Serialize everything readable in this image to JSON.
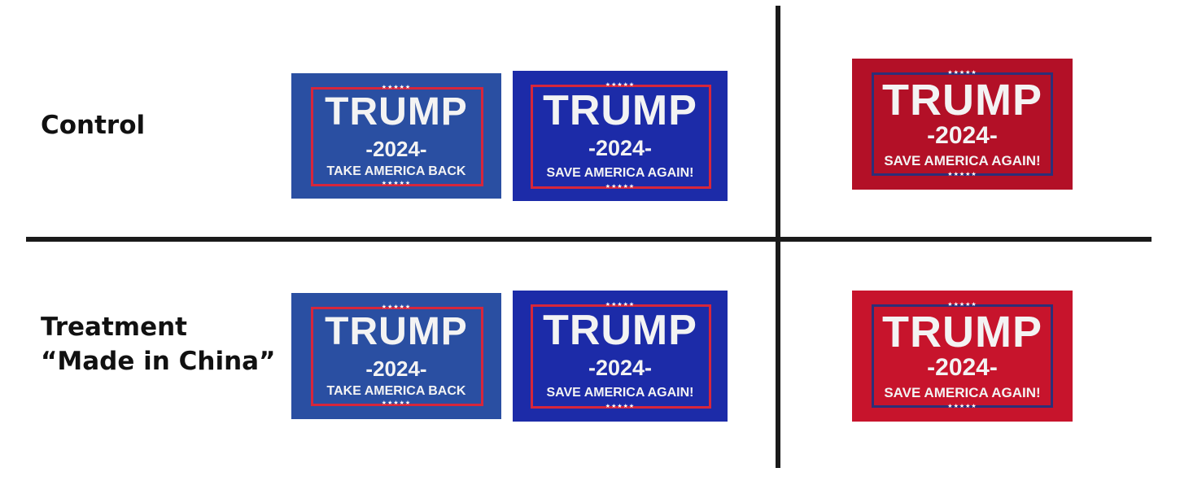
{
  "rows": {
    "control": "Control",
    "treatment_line1": "Treatment",
    "treatment_line2": "“Made in China”"
  },
  "flags": {
    "stars": "★★★★★",
    "name": "TRUMP",
    "year": "-2024-",
    "slogan_a": "TAKE AMERICA BACK",
    "slogan_b": "SAVE AMERICA  AGAIN!",
    "slogan_c": "SAVE AMERICA AGAIN!"
  },
  "colors": {
    "blue_flag": "#2a4fa2",
    "navy_flag": "#1c2ba8",
    "red_flag": "#b31027",
    "red_flag_light": "#c7142c",
    "red_frame": "#d7263b",
    "navy_frame": "#2c2f78",
    "divider": "#1a1a1a"
  }
}
